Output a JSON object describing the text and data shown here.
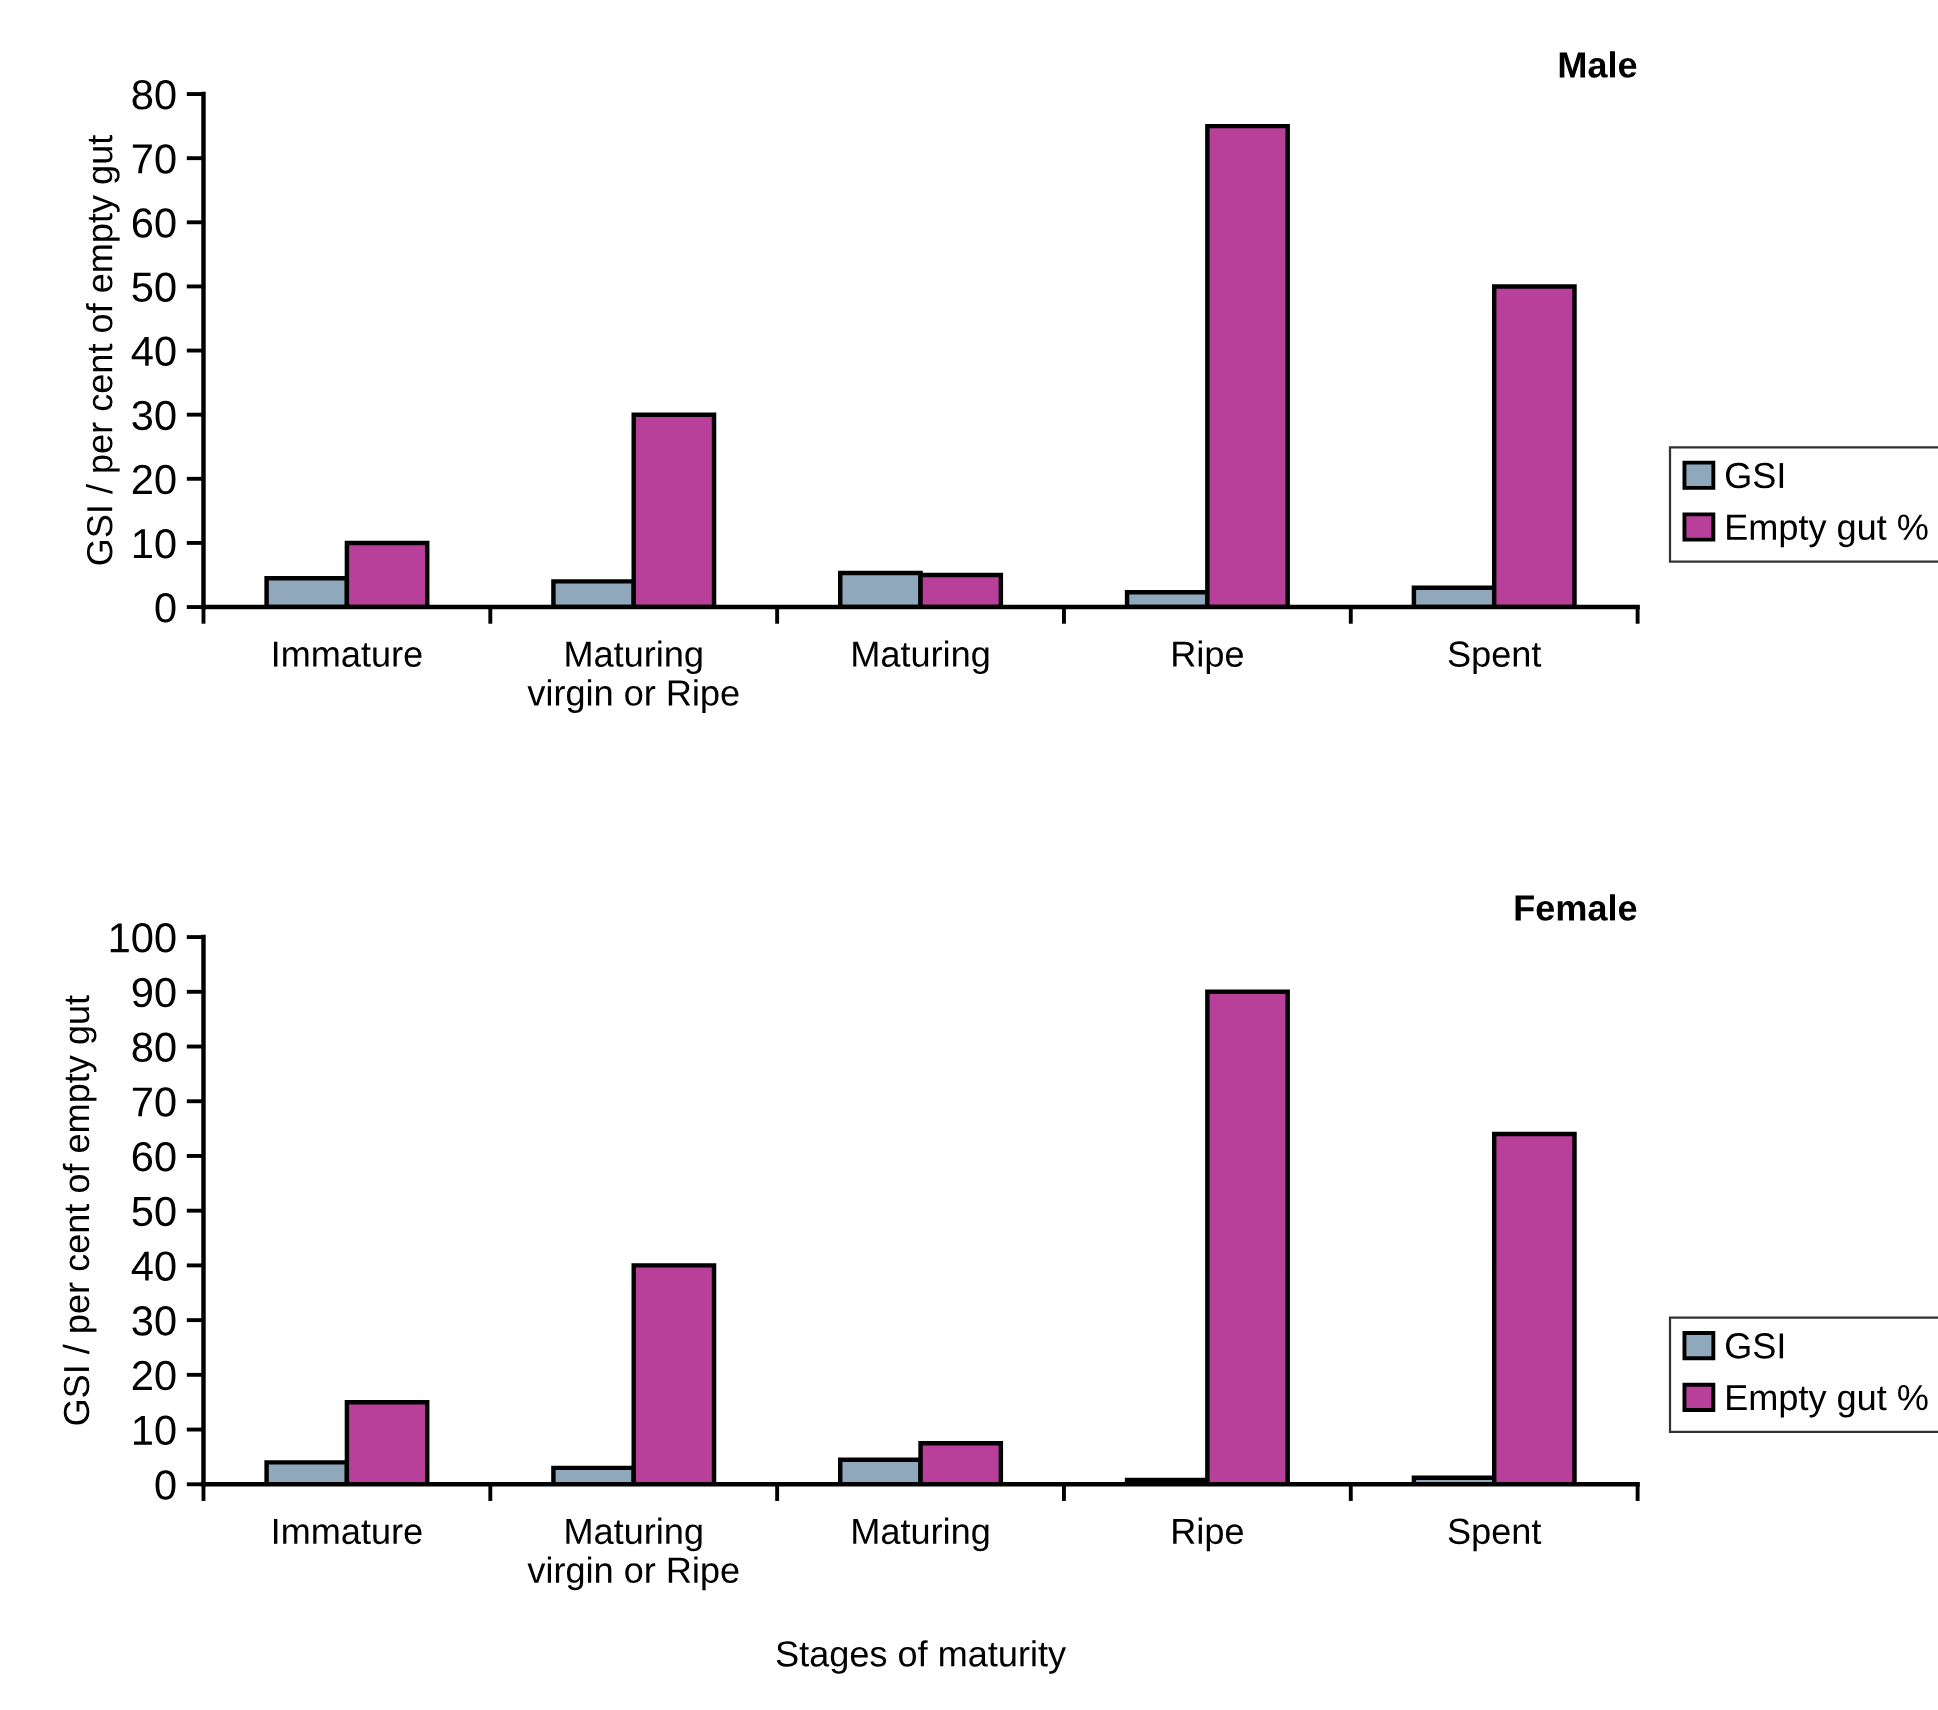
{
  "chart_data": [
    {
      "type": "bar",
      "title": "Male",
      "ylabel": "GSI / per cent of empty gut",
      "categories": [
        "Immature",
        "Maturing\nvirgin or Ripe",
        "Maturing",
        "Ripe",
        "Spent"
      ],
      "series": [
        {
          "name": "GSI",
          "color": "#8fa8bc",
          "values": [
            4.5,
            4,
            5.3,
            2.3,
            3
          ]
        },
        {
          "name": "Empty gut %",
          "color": "#b8409a",
          "values": [
            10,
            30,
            5,
            75,
            50
          ]
        }
      ],
      "ylim": [
        0,
        80
      ],
      "yticks": [
        0,
        10,
        20,
        30,
        40,
        50,
        60,
        70,
        80
      ],
      "grid": false,
      "legend": "right"
    },
    {
      "type": "bar",
      "title": "Female",
      "ylabel": "GSI / per cent of empty gut",
      "xlabel": "Stages of maturity",
      "categories": [
        "Immature",
        "Maturing\nvirgin or Ripe",
        "Maturing",
        "Ripe",
        "Spent"
      ],
      "series": [
        {
          "name": "GSI",
          "color": "#8fa8bc",
          "values": [
            4,
            3,
            4.5,
            0.8,
            1.2
          ]
        },
        {
          "name": "Empty gut %",
          "color": "#b8409a",
          "values": [
            15,
            40,
            7.5,
            90,
            64
          ]
        }
      ],
      "ylim": [
        0,
        100
      ],
      "yticks": [
        0,
        10,
        20,
        30,
        40,
        50,
        60,
        70,
        80,
        90,
        100
      ],
      "grid": false,
      "legend": "right"
    }
  ]
}
